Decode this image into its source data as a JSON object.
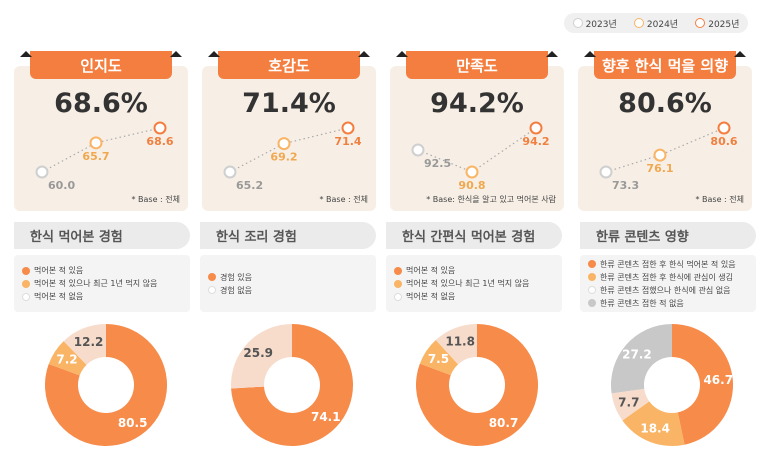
{
  "legend": {
    "items": [
      {
        "label": "2023년",
        "color": "#cfcfcf"
      },
      {
        "label": "2024년",
        "color": "#f9b466"
      },
      {
        "label": "2025년",
        "color": "#f47e3f"
      }
    ]
  },
  "colors": {
    "orange": "#f68b4a",
    "light_orange": "#f9b466",
    "beige": "#f8dccb",
    "grey": "#c8c8c8"
  },
  "chart_data": [
    {
      "type": "line",
      "title": "인지도",
      "headline": "68.6%",
      "x": [
        "2023년",
        "2024년",
        "2025년"
      ],
      "values": [
        60.0,
        65.7,
        68.6
      ],
      "labels": [
        "60.0",
        "65.7",
        "68.6"
      ],
      "note": "* Base : 전체"
    },
    {
      "type": "line",
      "title": "호감도",
      "headline": "71.4%",
      "x": [
        "2023년",
        "2024년",
        "2025년"
      ],
      "values": [
        65.2,
        69.2,
        71.4
      ],
      "labels": [
        "65.2",
        "69.2",
        "71.4"
      ],
      "note": "* Base : 전체"
    },
    {
      "type": "line",
      "title": "만족도",
      "headline": "94.2%",
      "x": [
        "2023년",
        "2024년",
        "2025년"
      ],
      "values": [
        92.5,
        90.8,
        94.2
      ],
      "labels": [
        "92.5",
        "90.8",
        "94.2"
      ],
      "note": "* Base: 한식을 알고 있고 먹어본 사람"
    },
    {
      "type": "line",
      "title": "향후 한식 먹을 의향",
      "headline": "80.6%",
      "x": [
        "2023년",
        "2024년",
        "2025년"
      ],
      "values": [
        73.3,
        76.1,
        80.6
      ],
      "labels": [
        "73.3",
        "76.1",
        "80.6"
      ],
      "note": "* Base : 전체"
    },
    {
      "type": "pie",
      "title": "한식 먹어본 경험",
      "categories": [
        "먹어본 적 있음",
        "먹어본 적 있으나 최근 1년 먹지 않음",
        "먹어본 적 없음"
      ],
      "values": [
        80.5,
        7.2,
        12.2
      ],
      "labels": [
        "80.5",
        "7.2",
        "12.2"
      ],
      "colors": [
        "#f68b4a",
        "#f9b466",
        "#f8dccb"
      ]
    },
    {
      "type": "pie",
      "title": "한식 조리 경험",
      "categories": [
        "경험 있음",
        "경험 없음"
      ],
      "values": [
        74.1,
        25.9
      ],
      "labels": [
        "74.1",
        "25.9"
      ],
      "colors": [
        "#f68b4a",
        "#f8dccb"
      ]
    },
    {
      "type": "pie",
      "title": "한식 간편식 먹어본 경험",
      "categories": [
        "먹어본 적 있음",
        "먹어본 적 있으나 최근 1년 먹지 않음",
        "먹어본 적 없음"
      ],
      "values": [
        80.7,
        7.5,
        11.8
      ],
      "labels": [
        "80.7",
        "7.5",
        "11.8"
      ],
      "colors": [
        "#f68b4a",
        "#f9b466",
        "#f8dccb"
      ]
    },
    {
      "type": "pie",
      "title": "한류 콘텐츠 영향",
      "categories": [
        "한류 콘텐츠 접한 후 한식 먹어본 적 있음",
        "한류 콘텐츠 접한 후 한식에 관심이 생김",
        "한류 콘텐츠 접했으나 한식에 관심 없음",
        "한류 콘텐츠 접한 적 없음"
      ],
      "values": [
        46.7,
        18.4,
        7.7,
        27.2
      ],
      "labels": [
        "46.7",
        "18.4",
        "7.7",
        "27.2"
      ],
      "colors": [
        "#f68b4a",
        "#f9b466",
        "#f8dccb",
        "#c8c8c8"
      ]
    }
  ]
}
